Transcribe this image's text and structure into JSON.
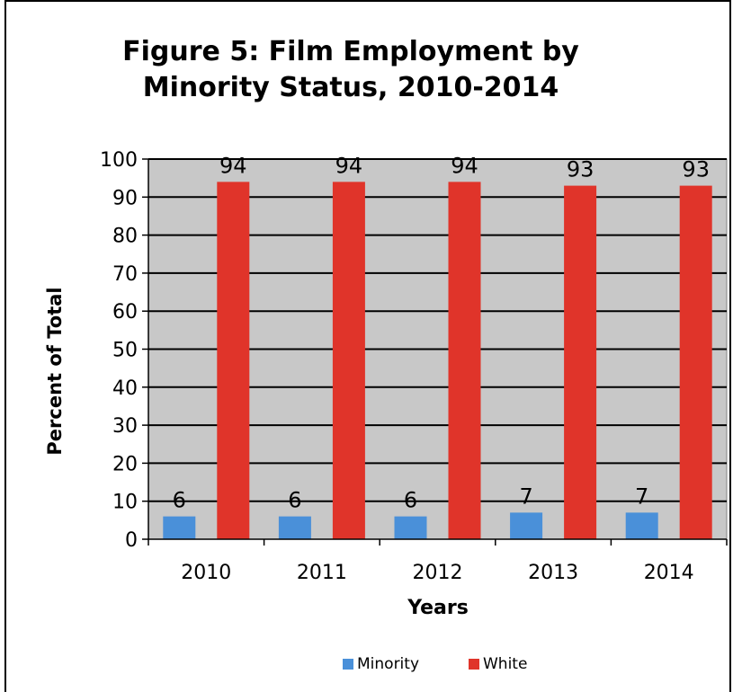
{
  "chart_data": {
    "type": "bar",
    "title_lines": [
      "Figure 5:  Film Employment by",
      "Minority Status, 2010-2014"
    ],
    "title": "Figure 5:  Film Employment by Minority Status, 2010-2014",
    "xlabel": "Years",
    "ylabel": "Percent of Total",
    "categories": [
      "2010",
      "2011",
      "2012",
      "2013",
      "2014"
    ],
    "series": [
      {
        "name": "Minority",
        "values": [
          6,
          6,
          6,
          7,
          7
        ],
        "color": "#4a90d9"
      },
      {
        "name": "White",
        "values": [
          94,
          94,
          94,
          93,
          93
        ],
        "color": "#e0342a"
      }
    ],
    "ylim": [
      0,
      100
    ],
    "yticks": [
      0,
      10,
      20,
      30,
      40,
      50,
      60,
      70,
      80,
      90,
      100
    ],
    "grid": true,
    "plot_background": "#c8c8c8",
    "legend_position": "bottom"
  }
}
